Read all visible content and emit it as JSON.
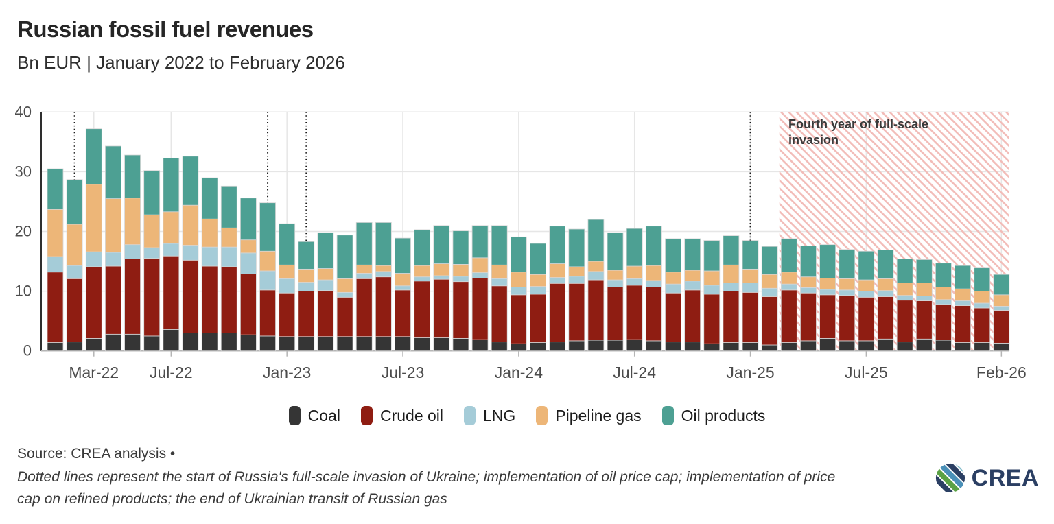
{
  "header": {
    "title": "Russian fossil fuel revenues",
    "subtitle": "Bn EUR | January 2022 to February 2026"
  },
  "annotation": {
    "text": "Fourth year of full-scale invasion"
  },
  "chart_data": {
    "type": "bar",
    "stacked": true,
    "unit": "Bn EUR",
    "title": "Russian fossil fuel revenues",
    "ylim": [
      0,
      40
    ],
    "yticks": [
      0,
      10,
      20,
      30,
      40
    ],
    "grid": true,
    "legend_position": "bottom",
    "categories": [
      "Jan-22",
      "Feb-22",
      "Mar-22",
      "Apr-22",
      "May-22",
      "Jun-22",
      "Jul-22",
      "Aug-22",
      "Sep-22",
      "Oct-22",
      "Nov-22",
      "Dec-22",
      "Jan-23",
      "Feb-23",
      "Mar-23",
      "Apr-23",
      "May-23",
      "Jun-23",
      "Jul-23",
      "Aug-23",
      "Sep-23",
      "Oct-23",
      "Nov-23",
      "Dec-23",
      "Jan-24",
      "Feb-24",
      "Mar-24",
      "Apr-24",
      "May-24",
      "Jun-24",
      "Jul-24",
      "Aug-24",
      "Sep-24",
      "Oct-24",
      "Nov-24",
      "Dec-24",
      "Jan-25",
      "Feb-25",
      "Mar-25",
      "Apr-25",
      "May-25",
      "Jun-25",
      "Jul-25",
      "Aug-25",
      "Sep-25",
      "Oct-25",
      "Nov-25",
      "Dec-25",
      "Jan-26",
      "Feb-26"
    ],
    "xtick_labels": [
      "Mar-22",
      "Jul-22",
      "Jan-23",
      "Jul-23",
      "Jan-24",
      "Jul-24",
      "Jan-25",
      "Jul-25",
      "Feb-26"
    ],
    "xtick_indices": [
      2,
      6,
      12,
      18,
      24,
      30,
      36,
      42,
      49
    ],
    "series": [
      {
        "name": "Coal",
        "color": "#353535",
        "values": [
          1.4,
          1.5,
          2.1,
          2.8,
          2.8,
          2.5,
          3.6,
          3.0,
          3.0,
          3.0,
          2.7,
          2.5,
          2.4,
          2.4,
          2.4,
          2.4,
          2.4,
          2.4,
          2.4,
          2.2,
          2.2,
          2.1,
          1.9,
          1.5,
          1.2,
          1.4,
          1.5,
          1.7,
          1.8,
          1.8,
          1.9,
          1.7,
          1.5,
          1.5,
          1.2,
          1.4,
          1.4,
          1.0,
          1.4,
          1.7,
          2.1,
          1.7,
          1.7,
          2.0,
          1.5,
          2.0,
          1.8,
          1.4,
          1.4,
          1.3
        ]
      },
      {
        "name": "Crude oil",
        "color": "#8f1d12",
        "values": [
          11.8,
          10.6,
          12.0,
          11.4,
          12.6,
          13.0,
          12.3,
          12.2,
          11.2,
          11.1,
          10.2,
          7.7,
          7.3,
          7.6,
          7.7,
          6.6,
          9.7,
          10.0,
          7.8,
          9.5,
          9.8,
          9.5,
          10.3,
          9.4,
          8.2,
          8.1,
          9.8,
          9.6,
          10.1,
          8.9,
          9.1,
          9.0,
          8.2,
          8.7,
          8.3,
          8.6,
          8.4,
          8.1,
          8.8,
          8.0,
          7.3,
          7.6,
          7.3,
          7.1,
          7.0,
          6.4,
          6.0,
          6.2,
          5.8,
          5.5
        ]
      },
      {
        "name": "LNG",
        "color": "#a5ccd8",
        "values": [
          2.6,
          2.2,
          2.5,
          2.3,
          2.4,
          1.8,
          2.1,
          2.5,
          3.2,
          3.3,
          3.5,
          3.2,
          2.4,
          1.5,
          1.8,
          0.8,
          0.9,
          0.9,
          0.7,
          0.7,
          0.6,
          0.9,
          0.9,
          1.2,
          1.3,
          1.3,
          1.0,
          1.2,
          1.4,
          1.2,
          1.1,
          1.1,
          1.5,
          1.5,
          1.5,
          1.4,
          1.6,
          1.4,
          1.0,
          0.9,
          0.9,
          0.9,
          1.0,
          1.0,
          0.8,
          0.8,
          0.8,
          0.8,
          0.8,
          0.7
        ]
      },
      {
        "name": "Pipeline gas",
        "color": "#edb678",
        "values": [
          7.9,
          6.9,
          11.3,
          9.0,
          7.8,
          5.5,
          5.3,
          6.7,
          4.7,
          3.2,
          2.2,
          3.3,
          2.3,
          2.2,
          1.9,
          2.3,
          1.4,
          1.0,
          2.1,
          1.9,
          2.0,
          2.0,
          2.5,
          2.3,
          2.5,
          2.0,
          2.3,
          1.6,
          1.7,
          1.6,
          2.1,
          2.5,
          2.0,
          1.8,
          2.4,
          3.0,
          2.3,
          2.3,
          2.0,
          1.8,
          1.9,
          1.9,
          1.9,
          2.0,
          2.1,
          2.2,
          2.1,
          2.0,
          2.0,
          1.9
        ]
      },
      {
        "name": "Oil products",
        "color": "#4da093",
        "values": [
          6.8,
          7.5,
          9.3,
          8.8,
          7.2,
          7.4,
          9.0,
          8.2,
          6.9,
          7.0,
          7.0,
          8.1,
          6.9,
          4.6,
          6.0,
          7.3,
          7.1,
          7.2,
          5.9,
          6.0,
          6.4,
          5.6,
          5.4,
          6.6,
          5.9,
          5.2,
          6.3,
          6.3,
          7.0,
          6.3,
          6.3,
          6.6,
          5.6,
          5.3,
          5.1,
          4.9,
          4.8,
          4.7,
          5.6,
          5.2,
          5.6,
          4.9,
          4.8,
          4.8,
          4.0,
          3.9,
          4.0,
          3.9,
          3.9,
          3.4
        ]
      }
    ],
    "event_lines": {
      "month_indices": [
        1,
        11,
        13,
        36
      ]
    },
    "hatch_region": {
      "start_index": 38,
      "end": "plot-right",
      "label": "Fourth year of full-scale invasion",
      "stripe_color": "#f2bcb8"
    }
  },
  "footer": {
    "source": "Source: CREA analysis •",
    "note_line1": "Dotted lines represent the start of Russia's full-scale invasion of Ukraine; implementation of oil price cap; implementation of price",
    "note_line2": "cap on refined products; the end of Ukrainian transit of Russian gas",
    "logo_text": "CREA"
  },
  "colors": {
    "grid": "#e6e6e6",
    "axis_labels": "#4c4c4c",
    "y_spine": "#2e2e2e",
    "x_spine": "#b5b5b5",
    "event_line": "#1c1c1c",
    "bar_stroke": "#d6d6d6",
    "hatch_stripe": "#f2bcb8",
    "annotation_text": "#3a3a3a",
    "logo_navy": "#2b3f63",
    "logo_green_light": "#8bc53f",
    "logo_green": "#5ba144",
    "logo_blue": "#4a90b8",
    "logo_teal": "#7fb9c9"
  }
}
